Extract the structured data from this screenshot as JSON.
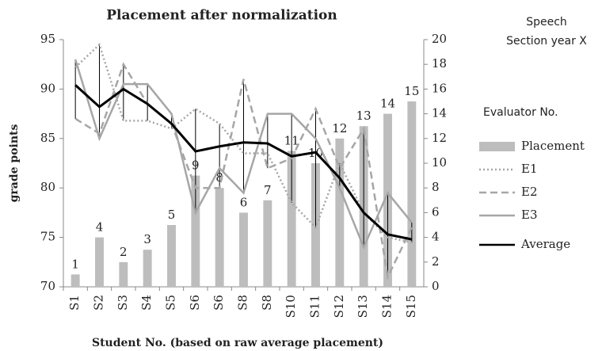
{
  "chart_data": {
    "type": "bar",
    "title": "Placement after normalization",
    "annotations": [
      "Speech",
      "Section year X"
    ],
    "legend_title": "Evaluator No.",
    "xlabel": "Student No. (based on raw average placement)",
    "ylabel": "grade points",
    "categories": [
      "S1",
      "S2",
      "S3",
      "S4",
      "S5",
      "S6",
      "S6",
      "S8",
      "S8",
      "S10",
      "S11",
      "S12",
      "S13",
      "S14",
      "S15"
    ],
    "ylim": [
      70,
      95
    ],
    "yticks": [
      70,
      75,
      80,
      85,
      90,
      95
    ],
    "y2lim": [
      0,
      20
    ],
    "y2ticks": [
      0,
      2,
      4,
      6,
      8,
      10,
      12,
      14,
      16,
      18,
      20
    ],
    "legend": "right",
    "series": [
      {
        "name": "Placement",
        "type": "bar",
        "axis": "y2",
        "color": "#bdbdbd",
        "values": [
          1,
          4,
          2,
          3,
          5,
          9,
          8,
          6,
          7,
          11,
          10,
          12,
          13,
          14,
          15
        ]
      },
      {
        "name": "E1",
        "type": "line",
        "linestyle": "dotted",
        "color": "#a6a6a6",
        "values": [
          92.2,
          94.5,
          86.8,
          86.8,
          86.0,
          88.0,
          86.5,
          83.5,
          83.5,
          78.5,
          76.0,
          82.5,
          77.5,
          75.0,
          74.5
        ]
      },
      {
        "name": "E2",
        "type": "line",
        "linestyle": "dashed",
        "color": "#a6a6a6",
        "values": [
          87.0,
          85.5,
          92.5,
          88.5,
          86.5,
          80.0,
          80.0,
          91.0,
          82.0,
          83.0,
          88.0,
          82.0,
          86.0,
          71.0,
          76.0
        ]
      },
      {
        "name": "E3",
        "type": "line",
        "linestyle": "solid",
        "color": "#a6a6a6",
        "values": [
          93.0,
          85.0,
          90.5,
          90.5,
          87.5,
          77.5,
          82.0,
          79.5,
          87.5,
          87.5,
          85.0,
          80.0,
          74.0,
          79.5,
          76.5
        ]
      },
      {
        "name": "Average",
        "type": "line",
        "linestyle": "solid",
        "color": "#000000",
        "values": [
          90.4,
          88.2,
          90.0,
          88.5,
          86.5,
          83.7,
          84.2,
          84.6,
          84.5,
          83.2,
          83.6,
          81.0,
          77.5,
          75.3,
          74.8
        ]
      }
    ]
  }
}
